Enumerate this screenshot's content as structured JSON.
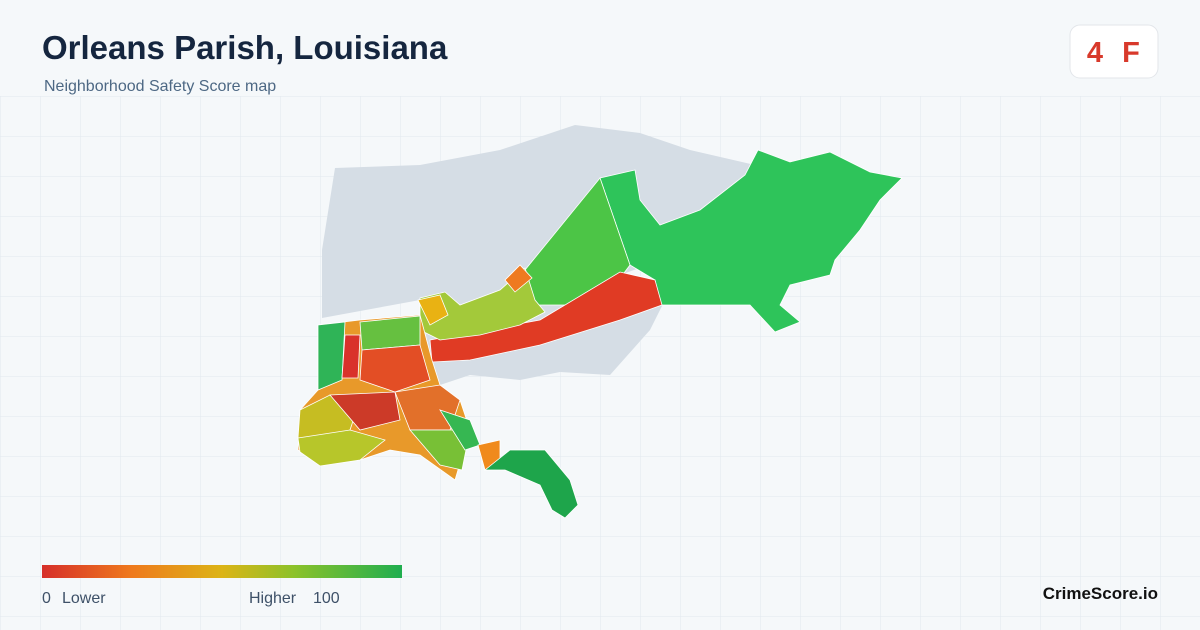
{
  "header": {
    "title": "Orleans Parish, Louisiana",
    "subtitle": "Neighborhood Safety Score map"
  },
  "badge": {
    "score": 4,
    "grade": "F"
  },
  "legend": {
    "min": 0,
    "min_label": "Lower",
    "max_label": "Higher",
    "max": 100
  },
  "footer": {
    "brand": "CrimeScore.io"
  }
}
